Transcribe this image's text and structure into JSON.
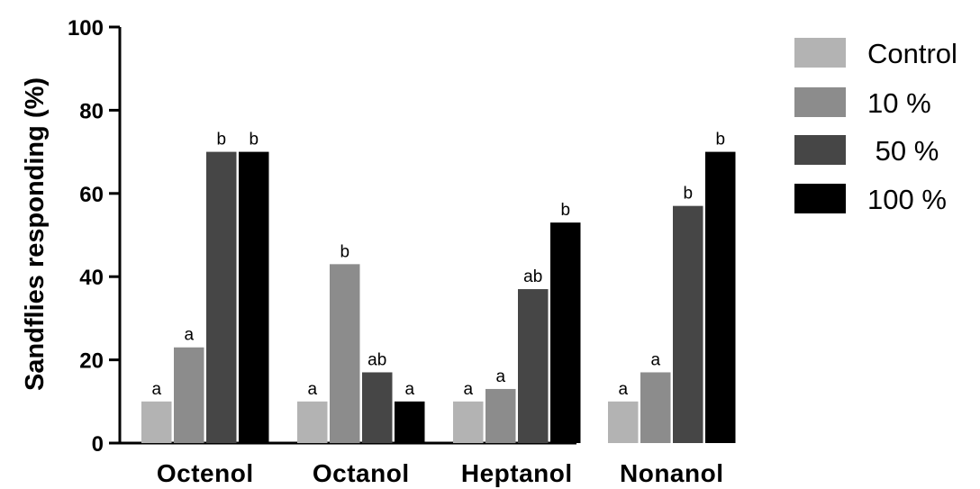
{
  "chart_data": {
    "type": "bar",
    "ylabel": "Sandflies responding (%)",
    "xlabel": "",
    "ylim": [
      0,
      100
    ],
    "yticks": [
      0,
      20,
      40,
      60,
      80,
      100
    ],
    "categories": [
      "Octenol",
      "Octanol",
      "Heptanol",
      "Nonanol"
    ],
    "series": [
      {
        "name": "Control",
        "color": "#b3b3b3",
        "values": [
          10,
          10,
          10,
          10
        ],
        "labels": [
          "a",
          "a",
          "a",
          "a"
        ]
      },
      {
        "name": "10 %",
        "color": "#8c8c8c",
        "values": [
          23,
          43,
          13,
          17
        ],
        "labels": [
          "a",
          "b",
          "a",
          "a"
        ]
      },
      {
        "name": " 50 %",
        "color": "#464646",
        "values": [
          70,
          17,
          37,
          57
        ],
        "labels": [
          "b",
          "ab",
          "ab",
          "b"
        ]
      },
      {
        "name": "100 %",
        "color": "#000000",
        "values": [
          70,
          10,
          53,
          70
        ],
        "labels": [
          "b",
          "a",
          "b",
          "b"
        ]
      }
    ],
    "legend_position": "top-right",
    "grid": false
  }
}
